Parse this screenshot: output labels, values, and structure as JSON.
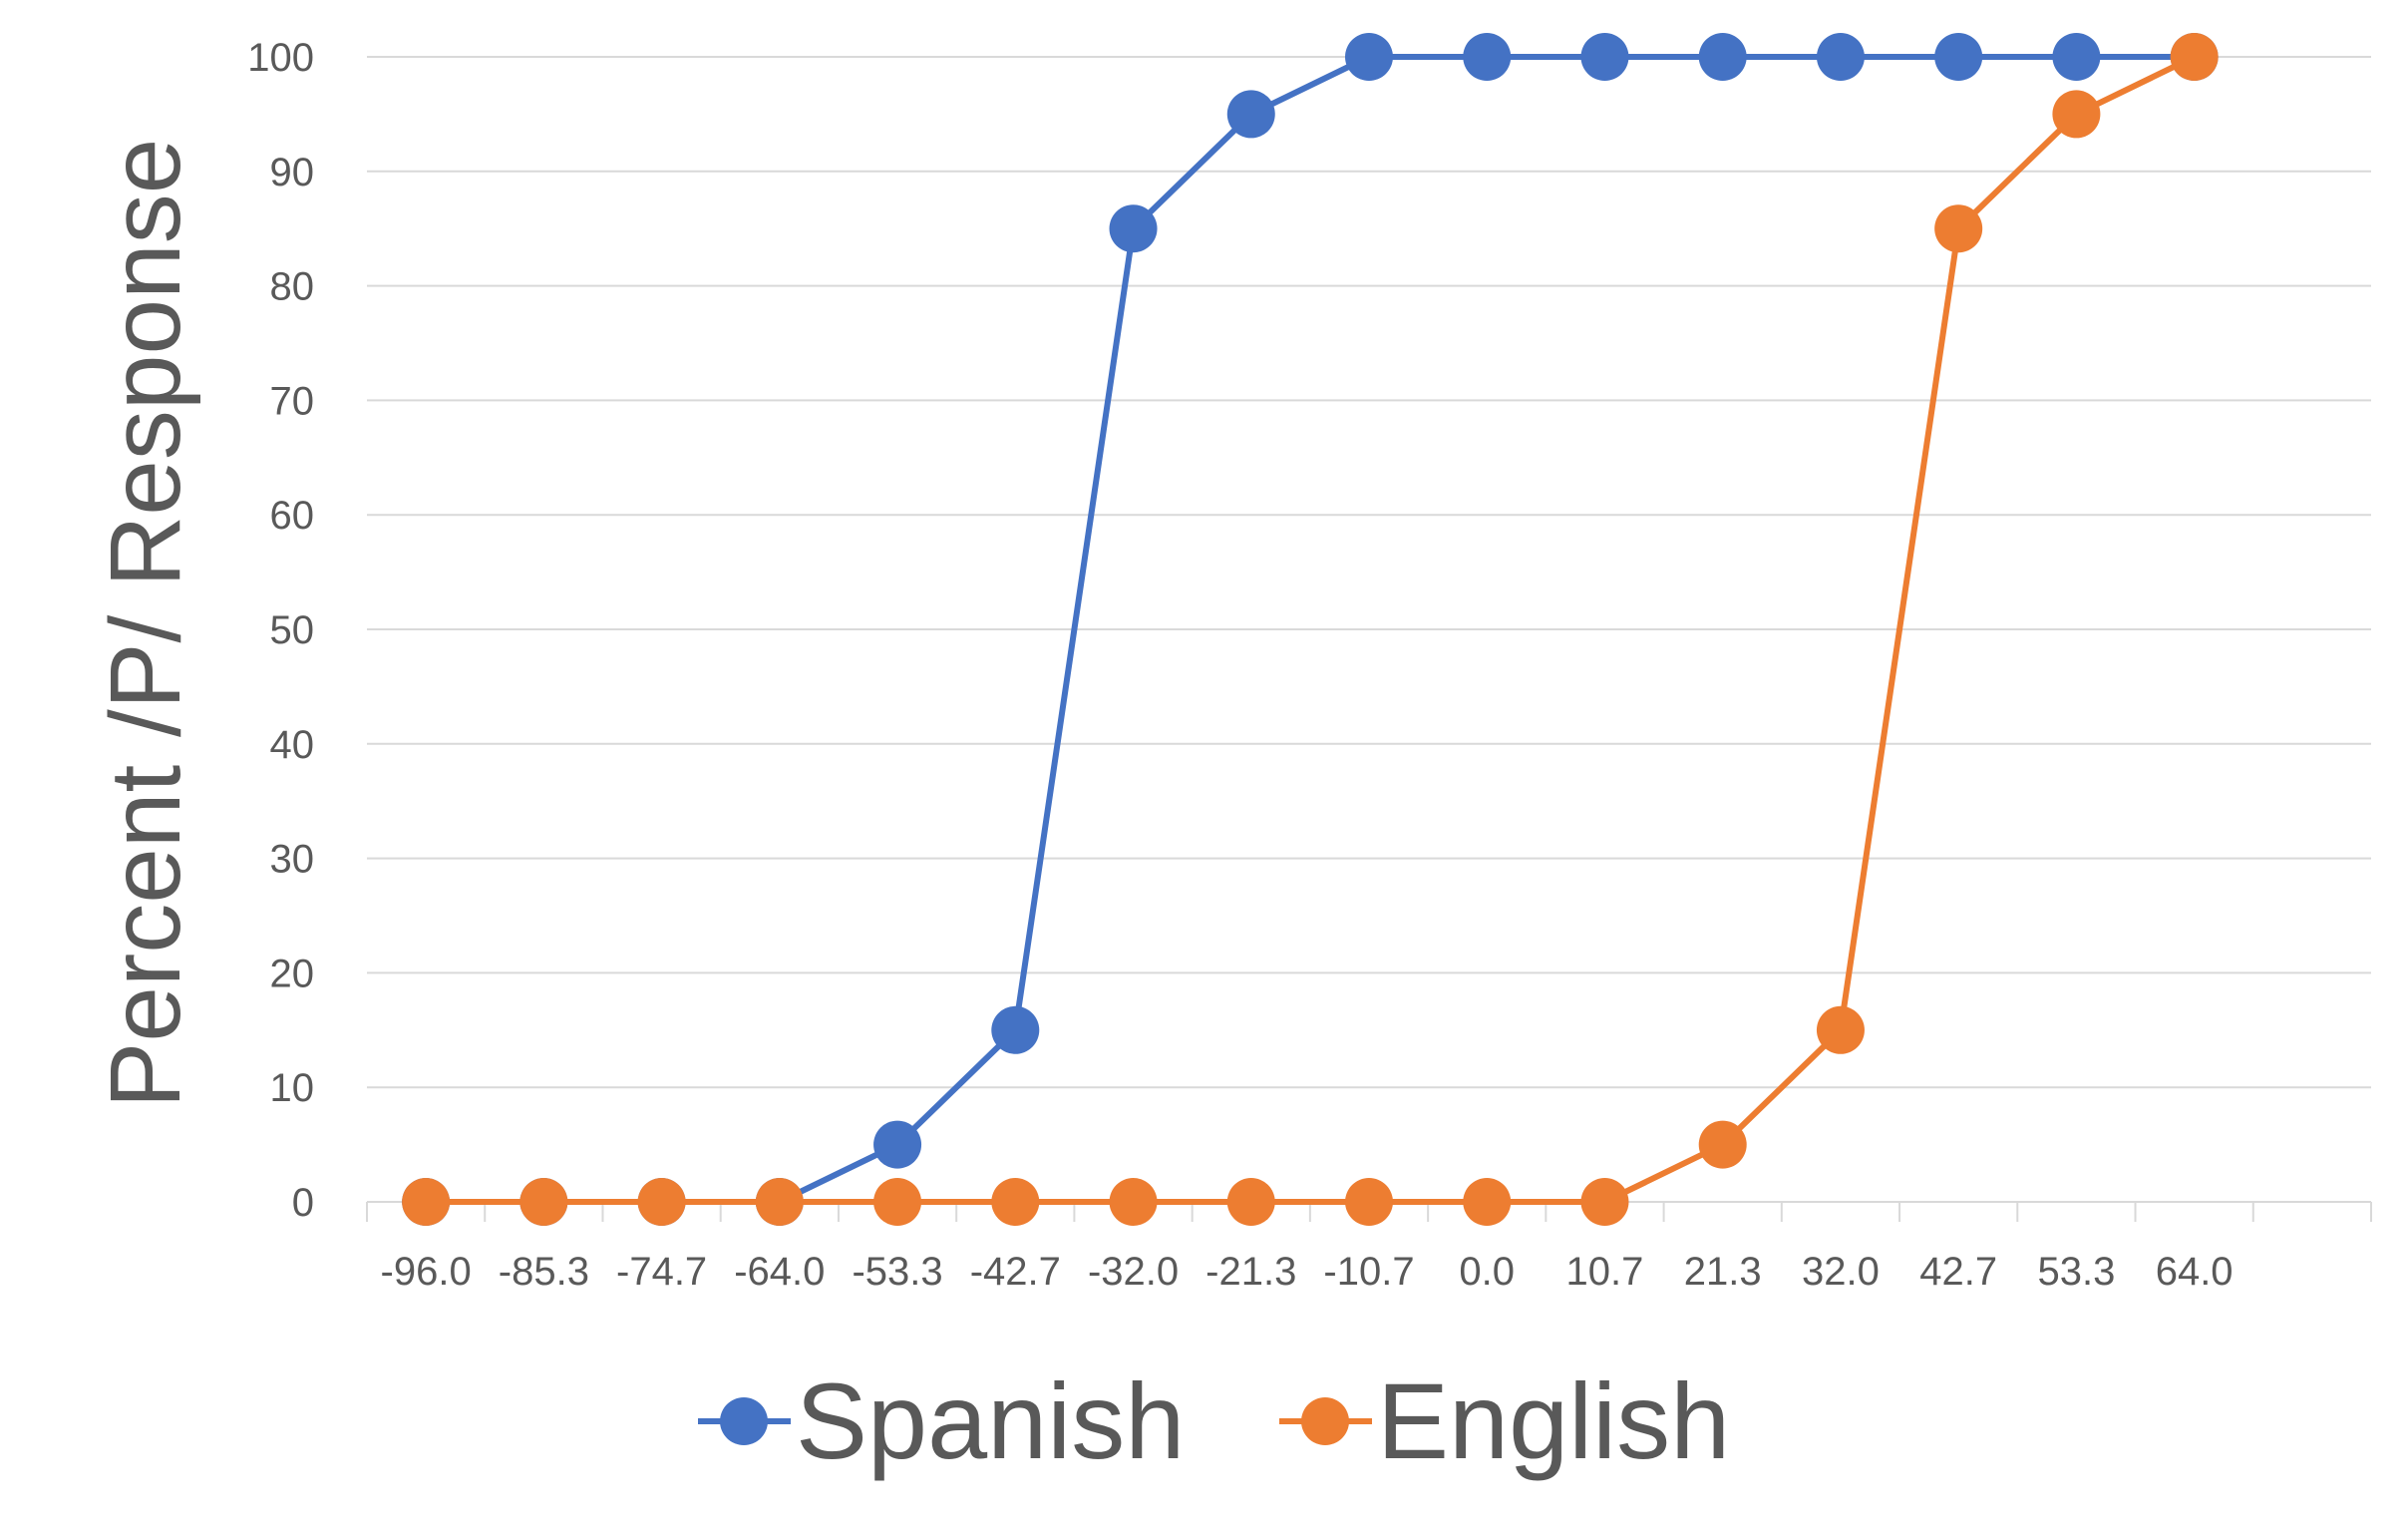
{
  "chart_data": {
    "type": "line",
    "title": "",
    "xlabel": "",
    "ylabel": "Percent /P/ Response",
    "categories": [
      "-96.0",
      "-85.3",
      "-74.7",
      "-64.0",
      "-53.3",
      "-42.7",
      "-32.0",
      "-21.3",
      "-10.7",
      "0.0",
      "10.7",
      "21.3",
      "32.0",
      "42.7",
      "53.3",
      "64.0"
    ],
    "ylim": [
      0,
      100
    ],
    "yticks": [
      "0",
      "10",
      "20",
      "30",
      "40",
      "50",
      "60",
      "70",
      "80",
      "90",
      "100"
    ],
    "grid": true,
    "legend_position": "bottom",
    "series": [
      {
        "name": "Spanish",
        "color": "#4472C4",
        "values": [
          0,
          0,
          0,
          0,
          5,
          15,
          85,
          95,
          100,
          100,
          100,
          100,
          100,
          100,
          100,
          100
        ]
      },
      {
        "name": "English",
        "color": "#ED7D31",
        "values": [
          0,
          0,
          0,
          0,
          0,
          0,
          0,
          0,
          0,
          0,
          0,
          5,
          15,
          85,
          95,
          100
        ]
      }
    ]
  }
}
